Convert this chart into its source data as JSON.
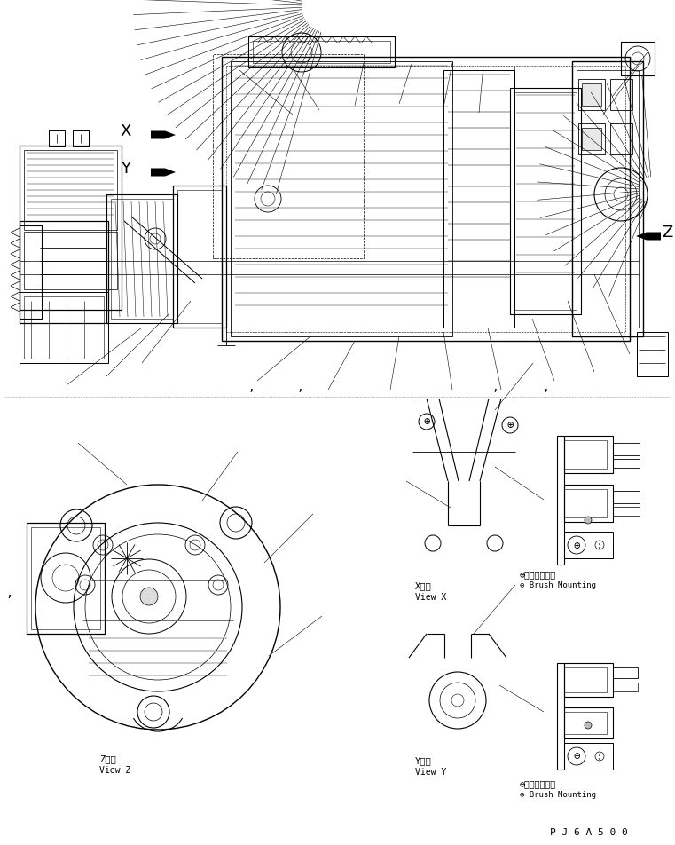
{
  "background_color": "#ffffff",
  "figure_width": 7.61,
  "figure_height": 9.53,
  "dpi": 100,
  "part_code": "P J 6 A 5 0 0",
  "labels": {
    "X_label": "X",
    "Y_label": "Y",
    "Z_label": "Z",
    "view_z_jp": "Z　視",
    "view_z_en": "View Z",
    "view_x_jp": "X　視",
    "view_x_en": "View X",
    "view_y_jp": "Y　視",
    "view_y_en": "View Y",
    "brush_x_jp": "⊕ブラシ取付法",
    "brush_x_en": "⊕ Brush Mounting",
    "brush_y_jp": "⊖ブラシ取付法",
    "brush_y_en": "⊖ Brush Mounting"
  },
  "line_color": "#000000",
  "thin_line": 0.4,
  "med_line": 0.7,
  "thick_line": 1.2
}
